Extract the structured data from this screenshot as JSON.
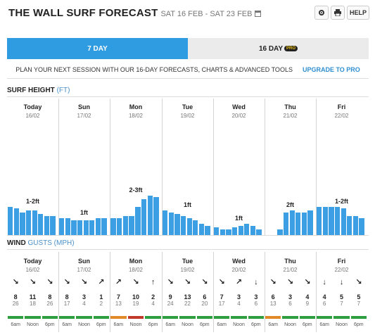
{
  "header": {
    "title": "THE WALL SURF FORECAST",
    "dates": "SAT 16 FEB - SAT 23 FEB",
    "help_label": "HELP"
  },
  "tabs": {
    "seven_day": "7 DAY",
    "sixteen_day": "16 DAY",
    "pro_badge": "PRO"
  },
  "promo": {
    "text": "PLAN YOUR NEXT SESSION WITH OUR 16-DAY FORECASTS, CHARTS & ADVANCED TOOLS",
    "upgrade": "UPGRADE TO PRO"
  },
  "surf": {
    "title": "SURF HEIGHT",
    "unit": "(FT)"
  },
  "wind_section": {
    "title": "WIND",
    "unit": "GUSTS (MPH)"
  },
  "days": [
    {
      "name": "Today",
      "date": "16/02"
    },
    {
      "name": "Sun",
      "date": "17/02"
    },
    {
      "name": "Mon",
      "date": "18/02"
    },
    {
      "name": "Tue",
      "date": "19/02"
    },
    {
      "name": "Wed",
      "date": "20/02"
    },
    {
      "name": "Thu",
      "date": "21/02"
    },
    {
      "name": "Fri",
      "date": "22/02"
    }
  ],
  "chart_data": {
    "type": "bar",
    "title": "SURF HEIGHT",
    "ylabel": "FT",
    "day_labels": [
      "1-2ft",
      "1ft",
      "2-3ft",
      "1ft",
      "1ft",
      "2ft",
      "1-2ft"
    ],
    "values": [
      [
        1.5,
        1.4,
        1.2,
        1.3,
        1.3,
        1.1,
        1.0,
        1.0
      ],
      [
        0.9,
        0.9,
        0.8,
        0.8,
        0.8,
        0.8,
        0.9,
        0.9
      ],
      [
        0.9,
        0.9,
        1.0,
        1.0,
        1.5,
        1.9,
        2.1,
        2.0
      ],
      [
        1.3,
        1.2,
        1.1,
        1.0,
        0.9,
        0.8,
        0.6,
        0.5
      ],
      [
        0.4,
        0.3,
        0.3,
        0.4,
        0.5,
        0.6,
        0.5,
        0.3
      ],
      [
        null,
        null,
        0.3,
        1.2,
        1.3,
        1.2,
        1.2,
        1.3
      ],
      [
        1.5,
        1.5,
        1.5,
        1.5,
        1.4,
        1.0,
        1.0,
        0.9
      ]
    ],
    "ylim": [
      0,
      7
    ]
  },
  "wind": {
    "times": [
      "6am",
      "Noon",
      "6pm"
    ],
    "colors": {
      "good": "#2e9e3e",
      "fair": "#e08a2a",
      "poor": "#c0392b"
    },
    "days": [
      [
        {
          "speed": "8",
          "gust": "26",
          "arrow": "↘",
          "rating": "good"
        },
        {
          "speed": "11",
          "gust": "18",
          "arrow": "↘",
          "rating": "good"
        },
        {
          "speed": "8",
          "gust": "26",
          "arrow": "↘",
          "rating": "good"
        }
      ],
      [
        {
          "speed": "8",
          "gust": "17",
          "arrow": "↘",
          "rating": "good"
        },
        {
          "speed": "3",
          "gust": "4",
          "arrow": "↘",
          "rating": "good"
        },
        {
          "speed": "1",
          "gust": "2",
          "arrow": "↗",
          "rating": "good"
        }
      ],
      [
        {
          "speed": "7",
          "gust": "13",
          "arrow": "↗",
          "rating": "fair"
        },
        {
          "speed": "10",
          "gust": "19",
          "arrow": "↘",
          "rating": "poor"
        },
        {
          "speed": "2",
          "gust": "4",
          "arrow": "↑",
          "rating": "good"
        }
      ],
      [
        {
          "speed": "9",
          "gust": "24",
          "arrow": "↘",
          "rating": "good"
        },
        {
          "speed": "13",
          "gust": "22",
          "arrow": "↘",
          "rating": "good"
        },
        {
          "speed": "6",
          "gust": "20",
          "arrow": "↘",
          "rating": "good"
        }
      ],
      [
        {
          "speed": "7",
          "gust": "17",
          "arrow": "↘",
          "rating": "good"
        },
        {
          "speed": "3",
          "gust": "4",
          "arrow": "↗",
          "rating": "good"
        },
        {
          "speed": "3",
          "gust": "6",
          "arrow": "↓",
          "rating": "good"
        }
      ],
      [
        {
          "speed": "6",
          "gust": "13",
          "arrow": "↘",
          "rating": "fair"
        },
        {
          "speed": "3",
          "gust": "6",
          "arrow": "↘",
          "rating": "good"
        },
        {
          "speed": "4",
          "gust": "9",
          "arrow": "↘",
          "rating": "good"
        }
      ],
      [
        {
          "speed": "4",
          "gust": "6",
          "arrow": "↓",
          "rating": "good"
        },
        {
          "speed": "5",
          "gust": "7",
          "arrow": "↓",
          "rating": "good"
        },
        {
          "speed": "5",
          "gust": "7",
          "arrow": "↘",
          "rating": "good"
        }
      ]
    ]
  }
}
